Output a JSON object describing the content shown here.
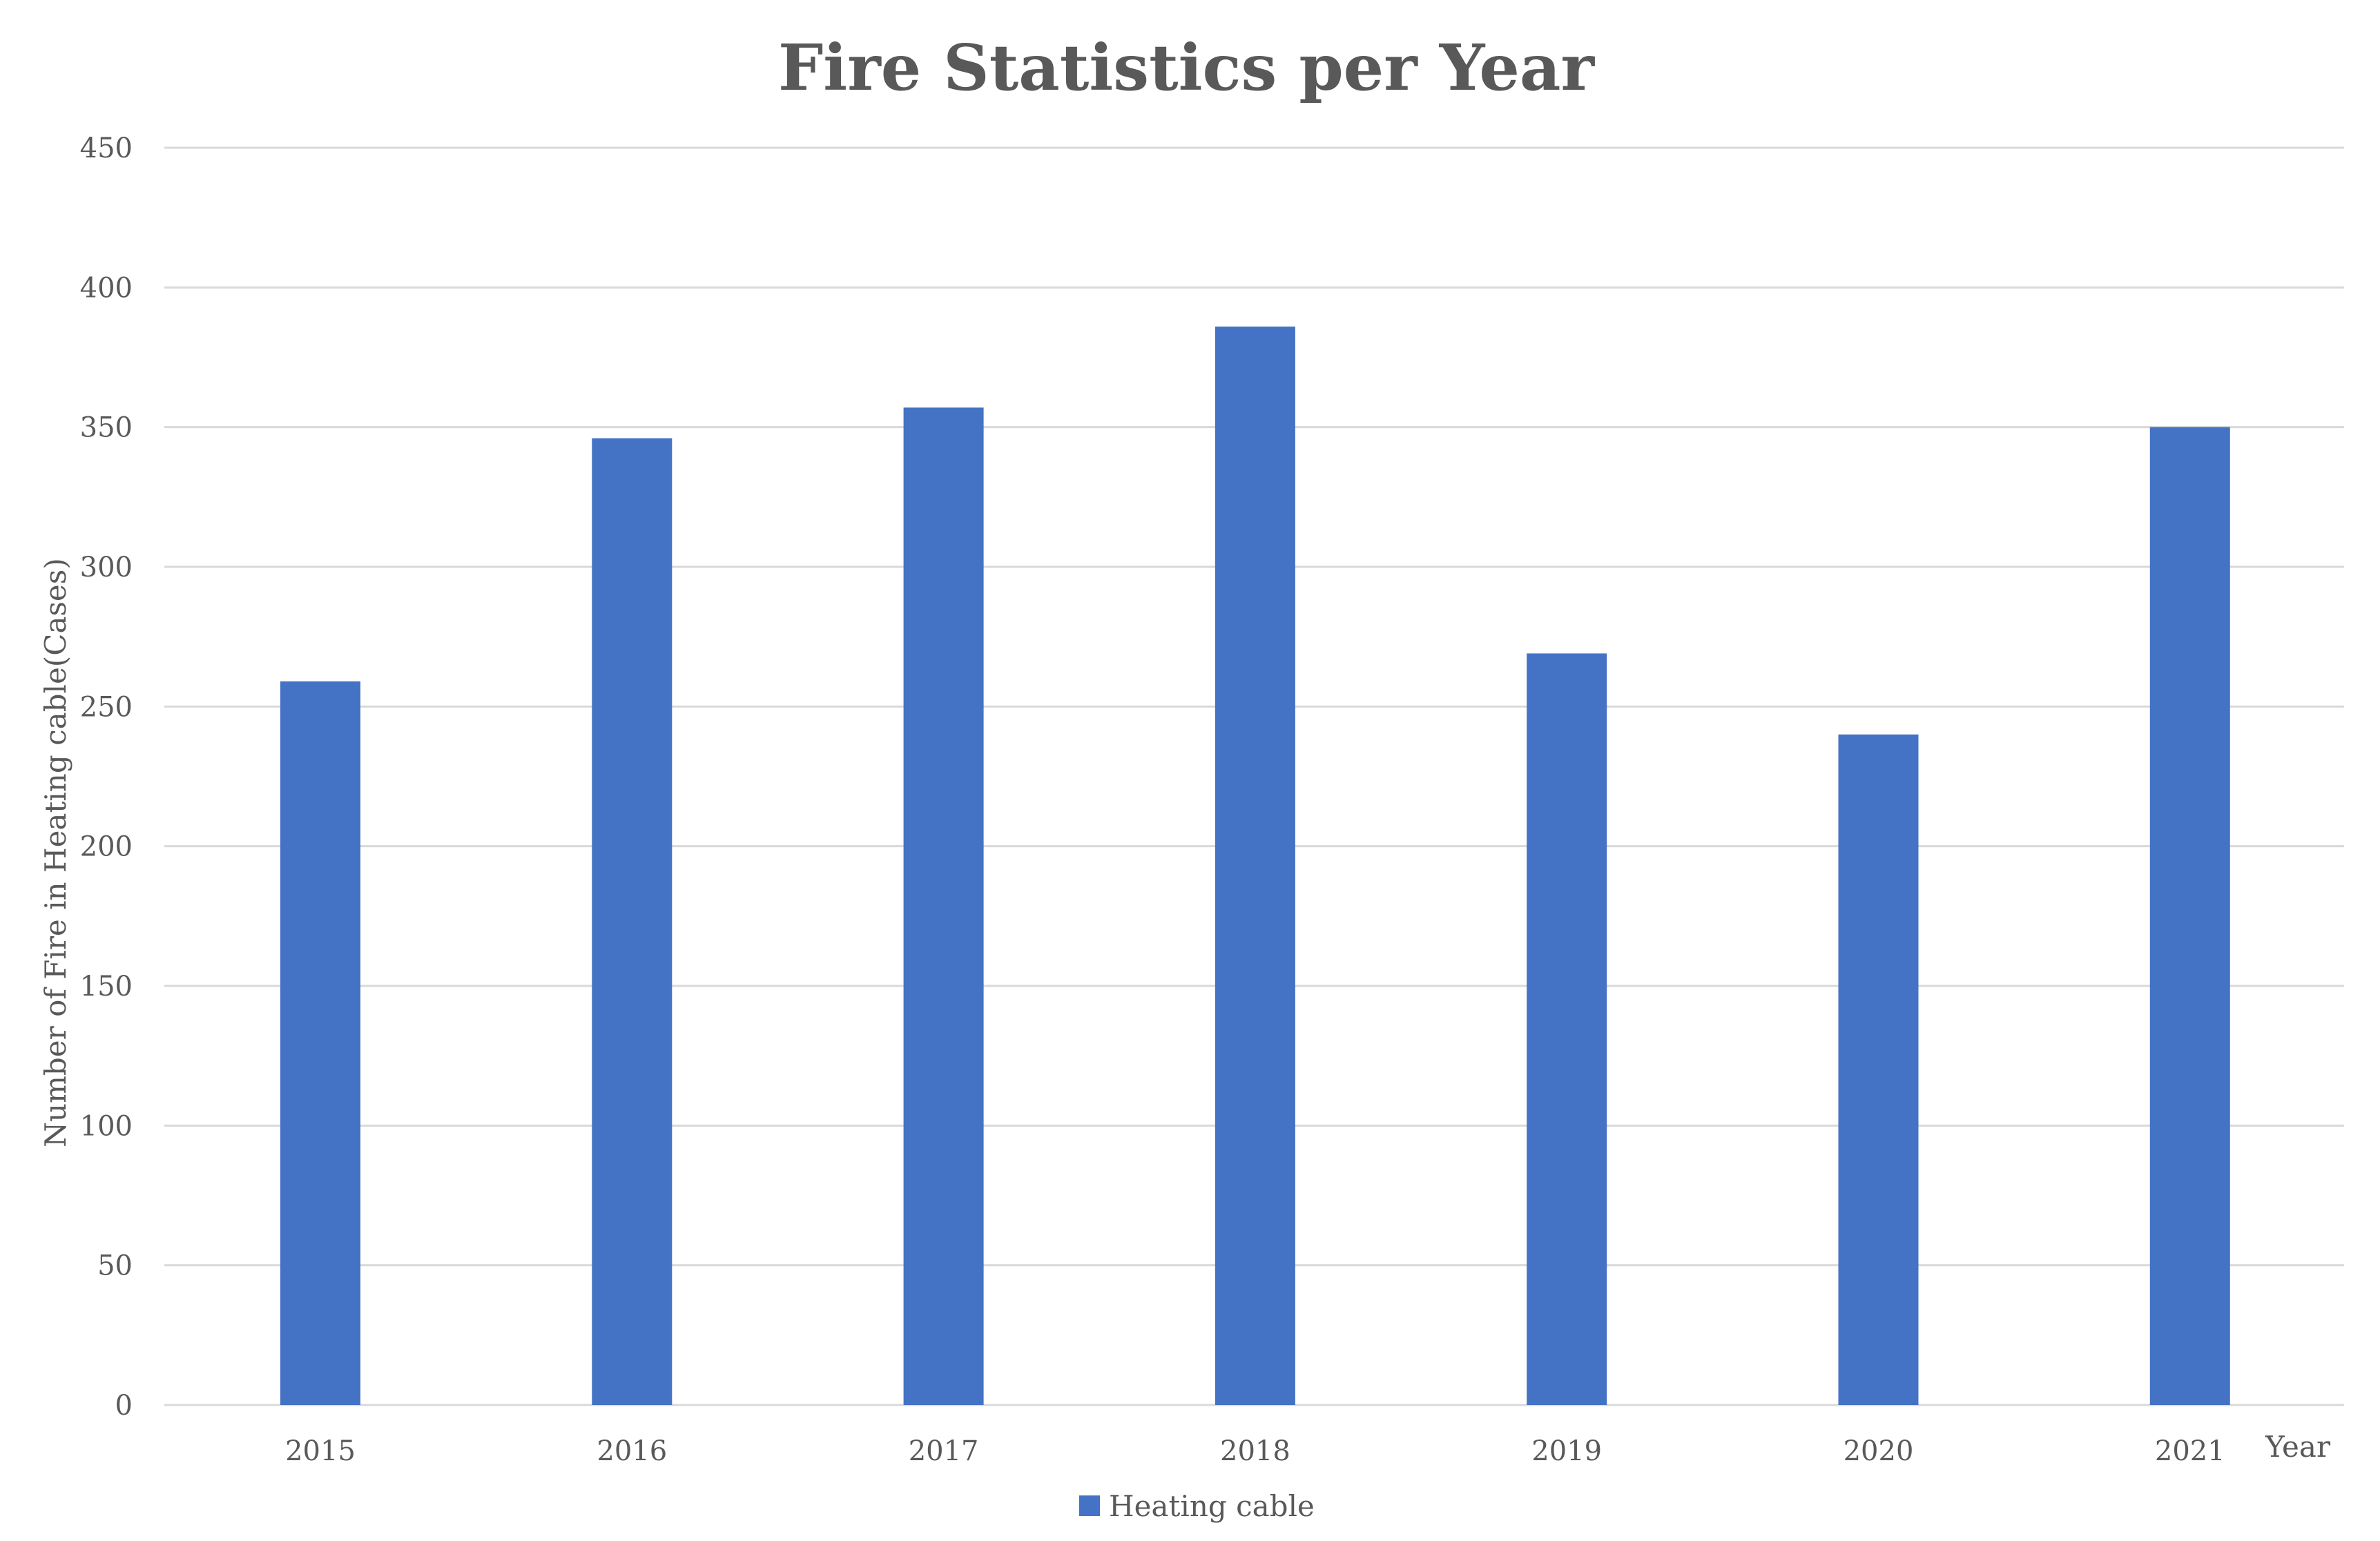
{
  "chart_data": {
    "type": "bar",
    "title": "Fire Statistics per Year",
    "xlabel": "Year",
    "ylabel": "Number of Fire in Heating  cable(Cases)",
    "categories": [
      "2015",
      "2016",
      "2017",
      "2018",
      "2019",
      "2020",
      "2021"
    ],
    "series": [
      {
        "name": "Heating cable",
        "color": "#4472c4",
        "values": [
          259,
          346,
          357,
          386,
          269,
          240,
          350
        ]
      }
    ],
    "ylim": [
      0,
      450
    ],
    "yticks": [
      "0",
      "50",
      "100",
      "150",
      "200",
      "250",
      "300",
      "350",
      "400",
      "450"
    ],
    "grid": true,
    "legend_position": "bottom"
  }
}
